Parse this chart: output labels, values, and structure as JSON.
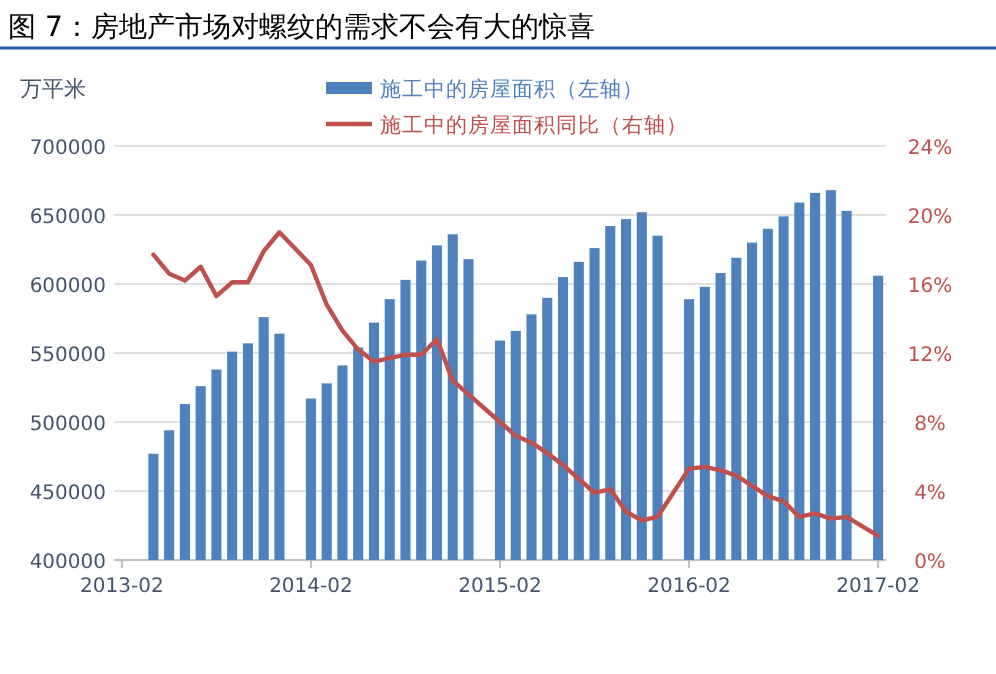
{
  "chart_data": {
    "type": "bar",
    "title": "图 7：房地产市场对螺纹的需求不会有大的惊喜",
    "ylabel": "万平米",
    "categories": [
      "2013-02",
      null,
      null,
      null,
      null,
      null,
      null,
      null,
      null,
      null,
      null,
      null,
      "2014-02",
      null,
      null,
      null,
      null,
      null,
      null,
      null,
      null,
      null,
      null,
      null,
      "2015-02",
      null,
      null,
      null,
      null,
      null,
      null,
      null,
      null,
      null,
      null,
      null,
      "2016-02",
      null,
      null,
      null,
      null,
      null,
      null,
      null,
      null,
      null,
      null,
      null,
      "2017-02"
    ],
    "series": [
      {
        "name": "施工中的房屋面积（左轴）",
        "color": "#4f81bd",
        "values": [
          null,
          null,
          477000,
          494000,
          513000,
          526000,
          538000,
          551000,
          557000,
          576000,
          564000,
          null,
          517000,
          528000,
          541000,
          554000,
          572000,
          589000,
          603000,
          617000,
          628000,
          636000,
          618000,
          null,
          559000,
          566000,
          578000,
          590000,
          605000,
          616000,
          626000,
          642000,
          647000,
          652000,
          635000,
          null,
          589000,
          598000,
          608000,
          619000,
          630000,
          640000,
          649000,
          659000,
          666000,
          668000,
          653000,
          null,
          606000
        ]
      },
      {
        "name": "施工中的房屋面积同比（右轴）",
        "type": "line",
        "axis": "y2",
        "color": "#c0504d",
        "values": [
          null,
          null,
          17.7,
          16.6,
          16.2,
          17.0,
          15.3,
          16.1,
          16.1,
          17.9,
          19.0,
          null,
          17.1,
          14.8,
          13.3,
          12.2,
          11.5,
          11.7,
          11.9,
          11.9,
          12.8,
          10.4,
          9.6,
          null,
          8.0,
          7.2,
          6.8,
          6.2,
          5.5,
          4.7,
          3.9,
          4.1,
          2.8,
          2.3,
          2.5,
          null,
          5.3,
          5.4,
          5.2,
          4.9,
          4.3,
          3.7,
          3.4,
          2.5,
          2.7,
          2.4,
          2.5,
          null,
          1.4
        ]
      }
    ],
    "ylim": [
      400000,
      700000
    ],
    "yticks": [
      400000,
      450000,
      500000,
      550000,
      600000,
      650000,
      700000
    ],
    "y2lim": [
      0,
      24
    ],
    "y2ticks": [
      {
        "value": 0,
        "label": "0%"
      },
      {
        "value": 4,
        "label": "4%"
      },
      {
        "value": 8,
        "label": "8%"
      },
      {
        "value": 12,
        "label": "12%"
      },
      {
        "value": 16,
        "label": "16%"
      },
      {
        "value": 20,
        "label": "20%"
      },
      {
        "value": 24,
        "label": "24%"
      }
    ],
    "grid": "y",
    "legend": "top"
  }
}
